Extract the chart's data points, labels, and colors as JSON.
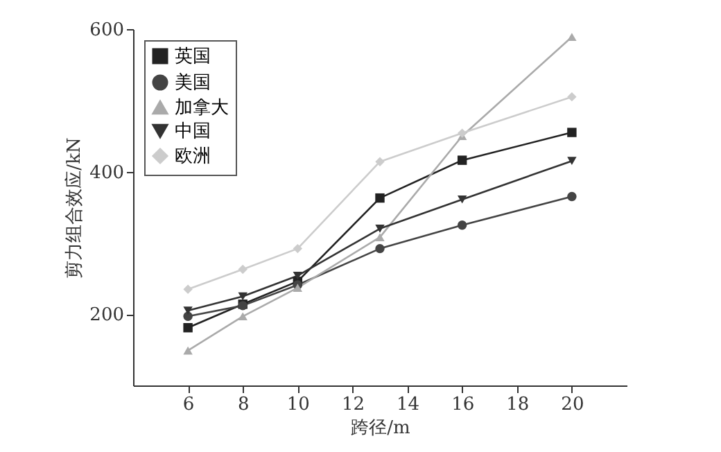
{
  "chart_data": {
    "type": "line",
    "xlabel": "跨径/m",
    "ylabel": "剪力组合效应/kN",
    "x": [
      6,
      8,
      10,
      13,
      16,
      20
    ],
    "xlim": [
      4,
      22
    ],
    "xticks": [
      6,
      8,
      10,
      12,
      14,
      16,
      18,
      20
    ],
    "ylim": [
      100,
      600
    ],
    "yticks": [
      200,
      400,
      600
    ],
    "grid": false,
    "legend": "top left",
    "line_style": "solid",
    "series": [
      {
        "name": "英国",
        "color": "#222222",
        "marker": "square",
        "values": [
          181,
          214,
          246,
          363,
          416,
          455
        ]
      },
      {
        "name": "美国",
        "color": "#444444",
        "marker": "circle",
        "values": [
          197,
          212,
          241,
          292,
          325,
          365
        ]
      },
      {
        "name": "加拿大",
        "color": "#aaaaaa",
        "marker": "triangle",
        "values": [
          149,
          197,
          237,
          308,
          450,
          589
        ]
      },
      {
        "name": "中国",
        "color": "#333333",
        "marker": "triangle-down",
        "values": [
          205,
          225,
          254,
          320,
          361,
          415
        ]
      },
      {
        "name": "欧洲",
        "color": "#cccccc",
        "marker": "diamond",
        "values": [
          235,
          263,
          292,
          414,
          454,
          505
        ]
      }
    ]
  }
}
